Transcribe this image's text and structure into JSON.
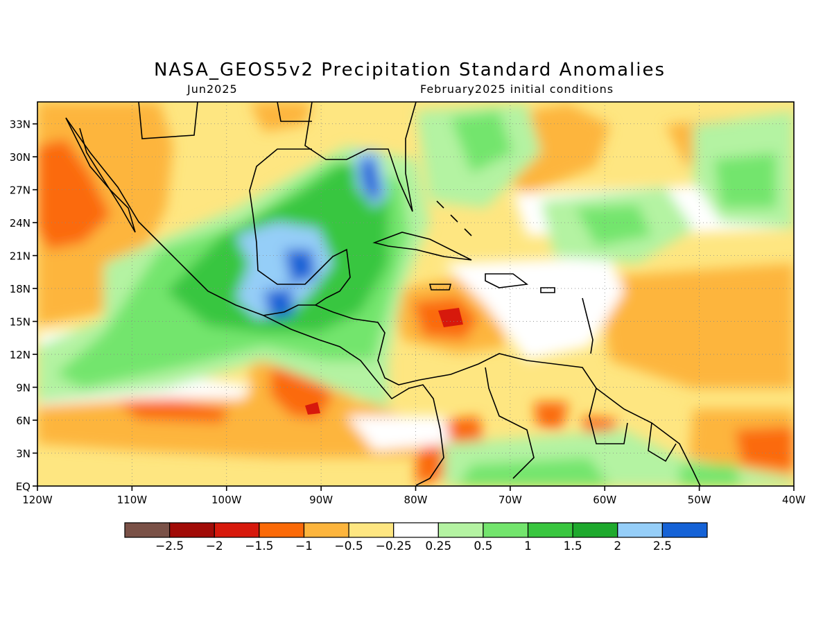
{
  "title": "NASA_GEOS5v2 Precipitation Standard Anomalies",
  "subtitle_left": "Jun2025",
  "subtitle_right": "February2025 initial conditions",
  "map": {
    "lon_range": [
      -120,
      -40
    ],
    "lat_range": [
      0,
      35
    ],
    "lon_ticks": [
      {
        "value": -120,
        "label": "120W"
      },
      {
        "value": -110,
        "label": "110W"
      },
      {
        "value": -100,
        "label": "100W"
      },
      {
        "value": -90,
        "label": "90W"
      },
      {
        "value": -80,
        "label": "80W"
      },
      {
        "value": -70,
        "label": "70W"
      },
      {
        "value": -60,
        "label": "60W"
      },
      {
        "value": -50,
        "label": "50W"
      },
      {
        "value": -40,
        "label": "40W"
      }
    ],
    "lat_ticks": [
      {
        "value": 0,
        "label": "EQ"
      },
      {
        "value": 3,
        "label": "3N"
      },
      {
        "value": 6,
        "label": "6N"
      },
      {
        "value": 9,
        "label": "9N"
      },
      {
        "value": 12,
        "label": "12N"
      },
      {
        "value": 15,
        "label": "15N"
      },
      {
        "value": 18,
        "label": "18N"
      },
      {
        "value": 21,
        "label": "21N"
      },
      {
        "value": 24,
        "label": "24N"
      },
      {
        "value": 27,
        "label": "27N"
      },
      {
        "value": 30,
        "label": "30N"
      },
      {
        "value": 33,
        "label": "33N"
      }
    ],
    "gridlines": true
  },
  "colorbar": {
    "colors": [
      "#7a5147",
      "#a10b07",
      "#d7190c",
      "#fb6a08",
      "#fdb53d",
      "#fee681",
      "#ffffff",
      "#b4f3a2",
      "#73e56d",
      "#39c63f",
      "#1ea92d",
      "#95cef8",
      "#1562d6"
    ],
    "labels": [
      "−2.5",
      "−2",
      "−1.5",
      "−1",
      "−0.5",
      "−0.25",
      "0.25",
      "0.5",
      "1",
      "1.5",
      "2",
      "2.5"
    ]
  },
  "colors": {
    "gray": "#7a5147",
    "dark_red": "#a10b07",
    "red": "#d7190c",
    "orange": "#fb6a08",
    "light_orange": "#fdb53d",
    "yellow": "#fee681",
    "white": "#ffffff",
    "light_green": "#b4f3a2",
    "green": "#73e56d",
    "mid_green": "#39c63f",
    "dark_green": "#1ea92d",
    "light_blue": "#95cef8",
    "blue": "#1562d6"
  }
}
